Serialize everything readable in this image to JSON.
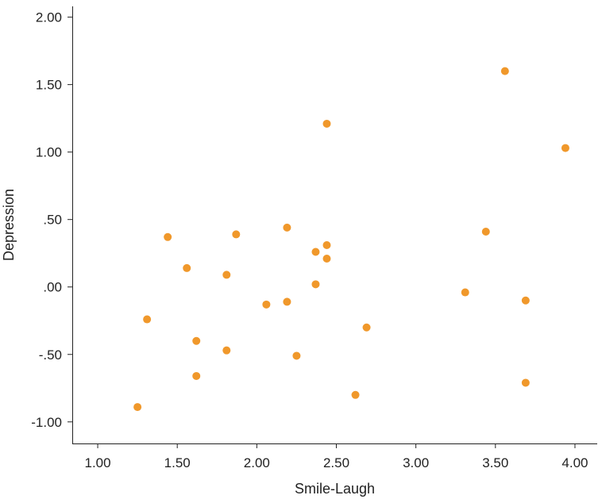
{
  "chart_data": {
    "type": "scatter",
    "title": "",
    "xlabel": "Smile-Laugh",
    "ylabel": "Depression",
    "xlim": [
      0.84,
      4.14
    ],
    "ylim": [
      -1.16,
      2.08
    ],
    "x_ticks": [
      {
        "value": 1.0,
        "label": "1.00"
      },
      {
        "value": 1.5,
        "label": "1.50"
      },
      {
        "value": 2.0,
        "label": "2.00"
      },
      {
        "value": 2.5,
        "label": "2.50"
      },
      {
        "value": 3.0,
        "label": "3.00"
      },
      {
        "value": 3.5,
        "label": "3.50"
      },
      {
        "value": 4.0,
        "label": "4.00"
      }
    ],
    "y_ticks": [
      {
        "value": 2.0,
        "label": "2.00"
      },
      {
        "value": 1.5,
        "label": "1.50"
      },
      {
        "value": 1.0,
        "label": "1.00"
      },
      {
        "value": 0.5,
        "label": ".50"
      },
      {
        "value": 0.0,
        "label": ".00"
      },
      {
        "value": -0.5,
        "label": "-.50"
      },
      {
        "value": -1.0,
        "label": "-1.00"
      }
    ],
    "grid": false,
    "marker_color": "#F0982B",
    "series": [
      {
        "points": [
          {
            "x": 1.25,
            "y": -0.89
          },
          {
            "x": 1.31,
            "y": -0.24
          },
          {
            "x": 1.44,
            "y": 0.37
          },
          {
            "x": 1.56,
            "y": 0.14
          },
          {
            "x": 1.62,
            "y": -0.4
          },
          {
            "x": 1.62,
            "y": -0.66
          },
          {
            "x": 1.81,
            "y": 0.09
          },
          {
            "x": 1.81,
            "y": -0.47
          },
          {
            "x": 1.87,
            "y": 0.39
          },
          {
            "x": 2.06,
            "y": -0.13
          },
          {
            "x": 2.19,
            "y": 0.44
          },
          {
            "x": 2.19,
            "y": -0.11
          },
          {
            "x": 2.25,
            "y": -0.51
          },
          {
            "x": 2.37,
            "y": 0.26
          },
          {
            "x": 2.37,
            "y": 0.02
          },
          {
            "x": 2.44,
            "y": 1.21
          },
          {
            "x": 2.44,
            "y": 0.31
          },
          {
            "x": 2.44,
            "y": 0.21
          },
          {
            "x": 2.62,
            "y": -0.8
          },
          {
            "x": 2.69,
            "y": -0.3
          },
          {
            "x": 3.31,
            "y": -0.04
          },
          {
            "x": 3.44,
            "y": 0.41
          },
          {
            "x": 3.56,
            "y": 1.6
          },
          {
            "x": 3.69,
            "y": -0.1
          },
          {
            "x": 3.69,
            "y": -0.71
          },
          {
            "x": 3.94,
            "y": 1.03
          }
        ]
      }
    ]
  }
}
